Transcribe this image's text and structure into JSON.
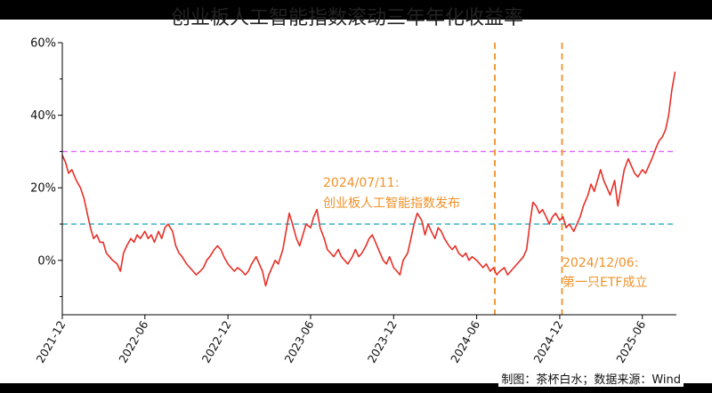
{
  "title": "创业板人工智能指数滚动三年年化收益率",
  "credit": "制图：茶杯白水；数据来源：Wind",
  "colors": {
    "series": "#e63028",
    "ref_upper": "#e066ff",
    "ref_lower": "#3ab0c8",
    "event": "#f0922a",
    "axis": "#000000"
  },
  "chart_data": {
    "type": "line",
    "title": "创业板人工智能指数滚动三年年化收益率",
    "xlabel": "",
    "ylabel": "",
    "xlim": [
      "2021-12-01",
      "2025-08-15"
    ],
    "ylim": [
      -15,
      60
    ],
    "y_ticks": [
      0,
      20,
      40,
      60
    ],
    "y_tick_labels": [
      "0%",
      "20%",
      "40%",
      "60%"
    ],
    "x_ticks": [
      "2021-12",
      "2022-06",
      "2022-12",
      "2023-06",
      "2023-12",
      "2024-06",
      "2024-12",
      "2025-06"
    ],
    "grid": false,
    "series": [
      {
        "points": [
          [
            "2021-12-01",
            29
          ],
          [
            "2021-12-08",
            27
          ],
          [
            "2021-12-15",
            24
          ],
          [
            "2021-12-22",
            25
          ],
          [
            "2022-01-01",
            22
          ],
          [
            "2022-01-10",
            20
          ],
          [
            "2022-01-18",
            17
          ],
          [
            "2022-01-25",
            13
          ],
          [
            "2022-02-01",
            9
          ],
          [
            "2022-02-08",
            6
          ],
          [
            "2022-02-15",
            7
          ],
          [
            "2022-02-22",
            5
          ],
          [
            "2022-03-01",
            5
          ],
          [
            "2022-03-08",
            2
          ],
          [
            "2022-03-15",
            1
          ],
          [
            "2022-03-22",
            0
          ],
          [
            "2022-04-01",
            -1
          ],
          [
            "2022-04-08",
            -3
          ],
          [
            "2022-04-15",
            2
          ],
          [
            "2022-04-22",
            4
          ],
          [
            "2022-05-01",
            6
          ],
          [
            "2022-05-08",
            5
          ],
          [
            "2022-05-15",
            7
          ],
          [
            "2022-05-22",
            6
          ],
          [
            "2022-06-01",
            8
          ],
          [
            "2022-06-08",
            6
          ],
          [
            "2022-06-15",
            7
          ],
          [
            "2022-06-22",
            5
          ],
          [
            "2022-07-01",
            8
          ],
          [
            "2022-07-08",
            6
          ],
          [
            "2022-07-15",
            9
          ],
          [
            "2022-07-22",
            10
          ],
          [
            "2022-08-01",
            8
          ],
          [
            "2022-08-08",
            4
          ],
          [
            "2022-08-15",
            2
          ],
          [
            "2022-08-22",
            1
          ],
          [
            "2022-09-01",
            -1
          ],
          [
            "2022-09-08",
            -2
          ],
          [
            "2022-09-15",
            -3
          ],
          [
            "2022-09-22",
            -4
          ],
          [
            "2022-10-01",
            -3
          ],
          [
            "2022-10-08",
            -2
          ],
          [
            "2022-10-15",
            0
          ],
          [
            "2022-10-22",
            1
          ],
          [
            "2022-11-01",
            3
          ],
          [
            "2022-11-08",
            4
          ],
          [
            "2022-11-15",
            3
          ],
          [
            "2022-11-22",
            1
          ],
          [
            "2022-12-01",
            -1
          ],
          [
            "2022-12-08",
            -2
          ],
          [
            "2022-12-15",
            -3
          ],
          [
            "2022-12-22",
            -2
          ],
          [
            "2023-01-01",
            -3
          ],
          [
            "2023-01-08",
            -4
          ],
          [
            "2023-01-15",
            -3
          ],
          [
            "2023-01-22",
            -1
          ],
          [
            "2023-02-01",
            1
          ],
          [
            "2023-02-08",
            -1
          ],
          [
            "2023-02-15",
            -3
          ],
          [
            "2023-02-22",
            -7
          ],
          [
            "2023-03-01",
            -4
          ],
          [
            "2023-03-08",
            -2
          ],
          [
            "2023-03-15",
            0
          ],
          [
            "2023-03-22",
            -1
          ],
          [
            "2023-04-01",
            3
          ],
          [
            "2023-04-08",
            8
          ],
          [
            "2023-04-15",
            13
          ],
          [
            "2023-04-22",
            10
          ],
          [
            "2023-05-01",
            6
          ],
          [
            "2023-05-08",
            4
          ],
          [
            "2023-05-15",
            7
          ],
          [
            "2023-05-22",
            10
          ],
          [
            "2023-06-01",
            9
          ],
          [
            "2023-06-08",
            12
          ],
          [
            "2023-06-15",
            14
          ],
          [
            "2023-06-22",
            9
          ],
          [
            "2023-07-01",
            6
          ],
          [
            "2023-07-08",
            3
          ],
          [
            "2023-07-15",
            2
          ],
          [
            "2023-07-22",
            1
          ],
          [
            "2023-08-01",
            3
          ],
          [
            "2023-08-08",
            1
          ],
          [
            "2023-08-15",
            0
          ],
          [
            "2023-08-22",
            -1
          ],
          [
            "2023-09-01",
            1
          ],
          [
            "2023-09-08",
            3
          ],
          [
            "2023-09-15",
            1
          ],
          [
            "2023-09-22",
            2
          ],
          [
            "2023-10-01",
            4
          ],
          [
            "2023-10-08",
            6
          ],
          [
            "2023-10-15",
            7
          ],
          [
            "2023-10-22",
            5
          ],
          [
            "2023-11-01",
            2
          ],
          [
            "2023-11-08",
            0
          ],
          [
            "2023-11-15",
            -1
          ],
          [
            "2023-11-22",
            1
          ],
          [
            "2023-12-01",
            -2
          ],
          [
            "2023-12-08",
            -3
          ],
          [
            "2023-12-15",
            -4
          ],
          [
            "2023-12-22",
            0
          ],
          [
            "2024-01-01",
            2
          ],
          [
            "2024-01-08",
            6
          ],
          [
            "2024-01-15",
            10
          ],
          [
            "2024-01-22",
            13
          ],
          [
            "2024-02-01",
            11
          ],
          [
            "2024-02-08",
            7
          ],
          [
            "2024-02-15",
            10
          ],
          [
            "2024-02-22",
            8
          ],
          [
            "2024-03-01",
            6
          ],
          [
            "2024-03-08",
            9
          ],
          [
            "2024-03-15",
            8
          ],
          [
            "2024-03-22",
            6
          ],
          [
            "2024-04-01",
            4
          ],
          [
            "2024-04-08",
            3
          ],
          [
            "2024-04-15",
            4
          ],
          [
            "2024-04-22",
            2
          ],
          [
            "2024-05-01",
            1
          ],
          [
            "2024-05-08",
            2
          ],
          [
            "2024-05-15",
            0
          ],
          [
            "2024-05-22",
            1
          ],
          [
            "2024-06-01",
            0
          ],
          [
            "2024-06-08",
            -1
          ],
          [
            "2024-06-15",
            -2
          ],
          [
            "2024-06-22",
            -1
          ],
          [
            "2024-07-01",
            -3
          ],
          [
            "2024-07-08",
            -2
          ],
          [
            "2024-07-15",
            -4
          ],
          [
            "2024-07-22",
            -3
          ],
          [
            "2024-08-01",
            -2
          ],
          [
            "2024-08-08",
            -4
          ],
          [
            "2024-08-15",
            -3
          ],
          [
            "2024-08-22",
            -2
          ],
          [
            "2024-08-29",
            -1
          ],
          [
            "2024-09-05",
            0
          ],
          [
            "2024-09-12",
            1
          ],
          [
            "2024-09-19",
            3
          ],
          [
            "2024-09-26",
            10
          ],
          [
            "2024-10-03",
            16
          ],
          [
            "2024-10-10",
            15
          ],
          [
            "2024-10-17",
            13
          ],
          [
            "2024-10-24",
            14
          ],
          [
            "2024-11-01",
            12
          ],
          [
            "2024-11-08",
            10
          ],
          [
            "2024-11-15",
            12
          ],
          [
            "2024-11-22",
            13
          ],
          [
            "2024-12-01",
            11
          ],
          [
            "2024-12-08",
            12
          ],
          [
            "2024-12-15",
            9
          ],
          [
            "2024-12-22",
            10
          ],
          [
            "2025-01-01",
            8
          ],
          [
            "2025-01-08",
            10
          ],
          [
            "2025-01-15",
            12
          ],
          [
            "2025-01-22",
            15
          ],
          [
            "2025-02-01",
            18
          ],
          [
            "2025-02-08",
            21
          ],
          [
            "2025-02-15",
            19
          ],
          [
            "2025-02-22",
            22
          ],
          [
            "2025-03-01",
            25
          ],
          [
            "2025-03-08",
            22
          ],
          [
            "2025-03-15",
            20
          ],
          [
            "2025-03-22",
            18
          ],
          [
            "2025-04-01",
            22
          ],
          [
            "2025-04-08",
            15
          ],
          [
            "2025-04-15",
            20
          ],
          [
            "2025-04-22",
            25
          ],
          [
            "2025-05-01",
            28
          ],
          [
            "2025-05-08",
            26
          ],
          [
            "2025-05-15",
            24
          ],
          [
            "2025-05-22",
            23
          ],
          [
            "2025-06-01",
            25
          ],
          [
            "2025-06-08",
            24
          ],
          [
            "2025-06-15",
            26
          ],
          [
            "2025-06-22",
            28
          ],
          [
            "2025-07-01",
            31
          ],
          [
            "2025-07-08",
            33
          ],
          [
            "2025-07-15",
            34
          ],
          [
            "2025-07-22",
            36
          ],
          [
            "2025-07-29",
            40
          ],
          [
            "2025-08-05",
            47
          ],
          [
            "2025-08-12",
            52
          ]
        ]
      }
    ],
    "reference_lines": [
      {
        "y": 30,
        "color": "#e066ff",
        "style": "dashed"
      },
      {
        "y": 10,
        "color": "#3ab0c8",
        "style": "dashed"
      }
    ],
    "event_lines": [
      {
        "x": "2024-07-11",
        "label_date": "2024/07/11:",
        "label_text": "创业板人工智能指数发布"
      },
      {
        "x": "2024-12-06",
        "label_date": "2024/12/06:",
        "label_text": "第一只ETF成立"
      }
    ]
  }
}
